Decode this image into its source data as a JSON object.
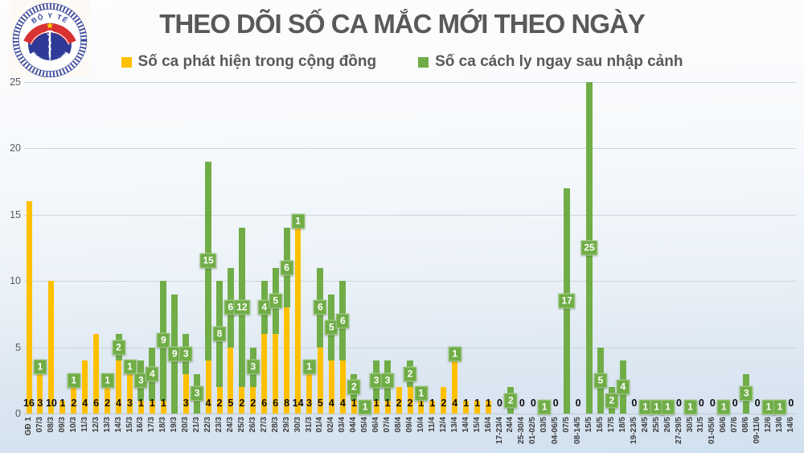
{
  "logo": {
    "top_text": "BỘ Y TẾ",
    "bottom_text": "MINISTRY OF HEALTH",
    "colors": {
      "blue": "#2e3a96",
      "red": "#d93232",
      "star": "#ffd200"
    }
  },
  "title": "THEO DÕI SỐ CA MẮC MỚI THEO NGÀY",
  "chart_data": {
    "type": "bar",
    "stacked": true,
    "title": "THEO DÕI SỐ CA MẮC MỚI THEO NGÀY",
    "xlabel": "",
    "ylabel": "",
    "ylim": [
      0,
      25
    ],
    "yticks": [
      0,
      5,
      10,
      15,
      20,
      25
    ],
    "grid": true,
    "legend_position": "top",
    "categories": [
      "GĐ 1",
      "07/3",
      "08/3",
      "09/3",
      "10/3",
      "11/3",
      "12/3",
      "13/3",
      "14/3",
      "15/3",
      "16/3",
      "17/3",
      "18/3",
      "19/3",
      "20/3",
      "21/3",
      "22/3",
      "23/3",
      "24/3",
      "25/3",
      "26/3",
      "27/3",
      "28/3",
      "29/3",
      "30/3",
      "31/3",
      "01/4",
      "02/4",
      "03/4",
      "04/4",
      "05/4",
      "06/4",
      "07/4",
      "08/4",
      "09/4",
      "10/4",
      "11/4",
      "12/4",
      "13/4",
      "14/4",
      "15/4",
      "16/4",
      "17-23/4",
      "24/4",
      "25-30/4",
      "01-02/5",
      "03/5",
      "04-06/5",
      "07/5",
      "08-14/5",
      "15/5",
      "16/5",
      "17/5",
      "18/5",
      "19-23/5",
      "24/5",
      "25/5",
      "26/5",
      "27-29/5",
      "30/5",
      "31/5",
      "01-05/6",
      "06/6",
      "07/6",
      "08/6",
      "09-11/6",
      "12/6",
      "13/6",
      "14/6"
    ],
    "series": [
      {
        "name": "Số ca phát hiện trong cộng đồng",
        "color": "#FFC000",
        "values": [
          16,
          3,
          10,
          1,
          2,
          4,
          6,
          2,
          4,
          3,
          1,
          1,
          1,
          0,
          3,
          0,
          4,
          2,
          5,
          2,
          2,
          6,
          6,
          8,
          14,
          3,
          5,
          4,
          4,
          1,
          0,
          1,
          1,
          2,
          2,
          1,
          1,
          2,
          4,
          1,
          1,
          1,
          0,
          0,
          0,
          0,
          0,
          0,
          0,
          0,
          0,
          0,
          0,
          0,
          0,
          0,
          0,
          0,
          0,
          0,
          0,
          0,
          0,
          0,
          0,
          0,
          0,
          0,
          0
        ]
      },
      {
        "name": "Số ca cách ly ngay sau nhập cảnh",
        "color": "#70AD47",
        "values": [
          0,
          1,
          0,
          0,
          1,
          0,
          0,
          1,
          2,
          1,
          3,
          4,
          9,
          9,
          3,
          3,
          15,
          8,
          6,
          12,
          3,
          4,
          5,
          6,
          1,
          1,
          6,
          5,
          6,
          2,
          1,
          3,
          3,
          0,
          2,
          1,
          0,
          0,
          1,
          0,
          0,
          0,
          0,
          2,
          0,
          0,
          1,
          0,
          17,
          0,
          25,
          5,
          2,
          4,
          0,
          1,
          1,
          1,
          0,
          1,
          0,
          0,
          1,
          0,
          3,
          0,
          1,
          1,
          0
        ]
      }
    ]
  }
}
